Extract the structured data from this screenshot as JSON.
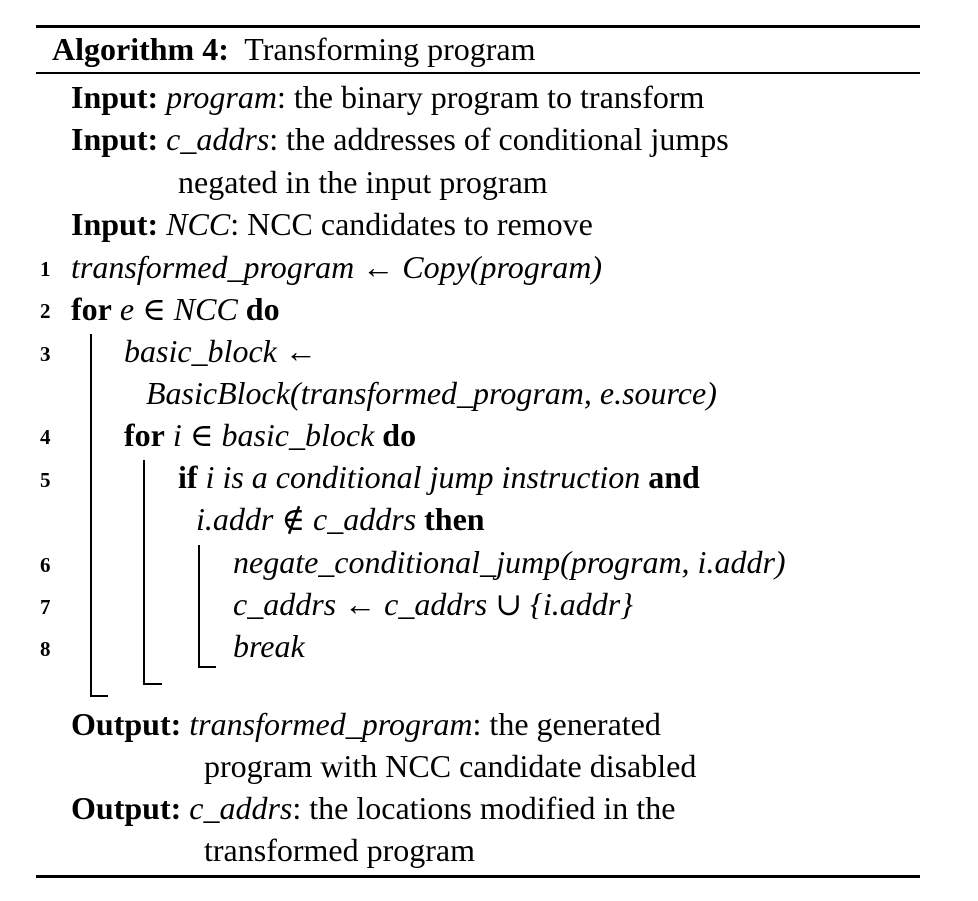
{
  "algorithm": {
    "label": "Algorithm 4:",
    "title": "Transforming program",
    "inputs": [
      {
        "kw": "Input:",
        "var": "program",
        "desc": ": the binary program to transform"
      },
      {
        "kw": "Input:",
        "var": "c_addrs",
        "desc": ": the addresses of conditional jumps",
        "cont": "negated in the input program"
      },
      {
        "kw": "Input:",
        "var": "NCC",
        "desc": ": NCC candidates to remove"
      }
    ],
    "lines": [
      {
        "num": "1",
        "text": "transformed_program ← Copy(program)"
      },
      {
        "num": "2",
        "kw1": "for",
        "mid": "e ∈ NCC",
        "kw2": "do"
      },
      {
        "num": "3",
        "text": "basic_block ←",
        "cont": "BasicBlock(transformed_program, e.source)"
      },
      {
        "num": "4",
        "kw1": "for",
        "mid": "i ∈ basic_block",
        "kw2": "do"
      },
      {
        "num": "5",
        "kw1": "if",
        "mid": "i is a conditional jump instruction",
        "kw2": "and",
        "cont_mid": "i.addr ∉ c_addrs",
        "cont_kw": "then"
      },
      {
        "num": "6",
        "text": "negate_conditional_jump(program, i.addr)"
      },
      {
        "num": "7",
        "text": "c_addrs ← c_addrs ∪ {i.addr}"
      },
      {
        "num": "8",
        "text": "break"
      }
    ],
    "outputs": [
      {
        "kw": "Output:",
        "var": "transformed_program",
        "desc": ": the generated",
        "cont": "program with NCC candidate disabled"
      },
      {
        "kw": "Output:",
        "var": "c_addrs",
        "desc": ": the locations modified in the",
        "cont": "transformed program"
      }
    ]
  }
}
